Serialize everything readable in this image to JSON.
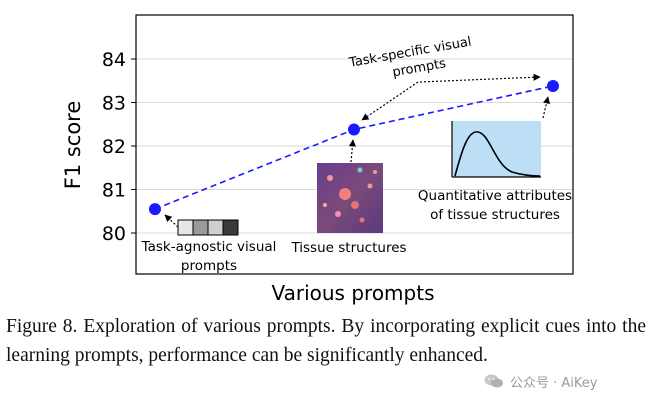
{
  "chart_data": {
    "type": "line",
    "title": "",
    "xlabel": "Various prompts",
    "ylabel": "F1 score",
    "ylim": [
      79.6,
      85.0
    ],
    "yticks": [
      80,
      81,
      82,
      83,
      84
    ],
    "grid": "y",
    "points": [
      {
        "label": "Task-agnostic visual prompts",
        "x": 0,
        "y": 80.55
      },
      {
        "label": "Tissue structures",
        "x": 1,
        "y": 82.38
      },
      {
        "label": "Quantitative attributes of tissue structures",
        "x": 2,
        "y": 83.38
      }
    ],
    "series_color": "#1a1aff",
    "annotations": {
      "task_specific": "Task-specific visual prompts",
      "task_agnostic": "Task-agnostic visual prompts",
      "tissue": "Tissue structures",
      "quantitative": "Quantitative attributes of tissue structures"
    },
    "inset_icons": [
      "grayscale-squares",
      "tissue-image",
      "distribution-curve"
    ]
  },
  "caption": "Figure 8. Exploration of various prompts. By incorporating explicit cues into the learning prompts, performance can be significantly enhanced.",
  "watermark": "公众号 · AiKey"
}
